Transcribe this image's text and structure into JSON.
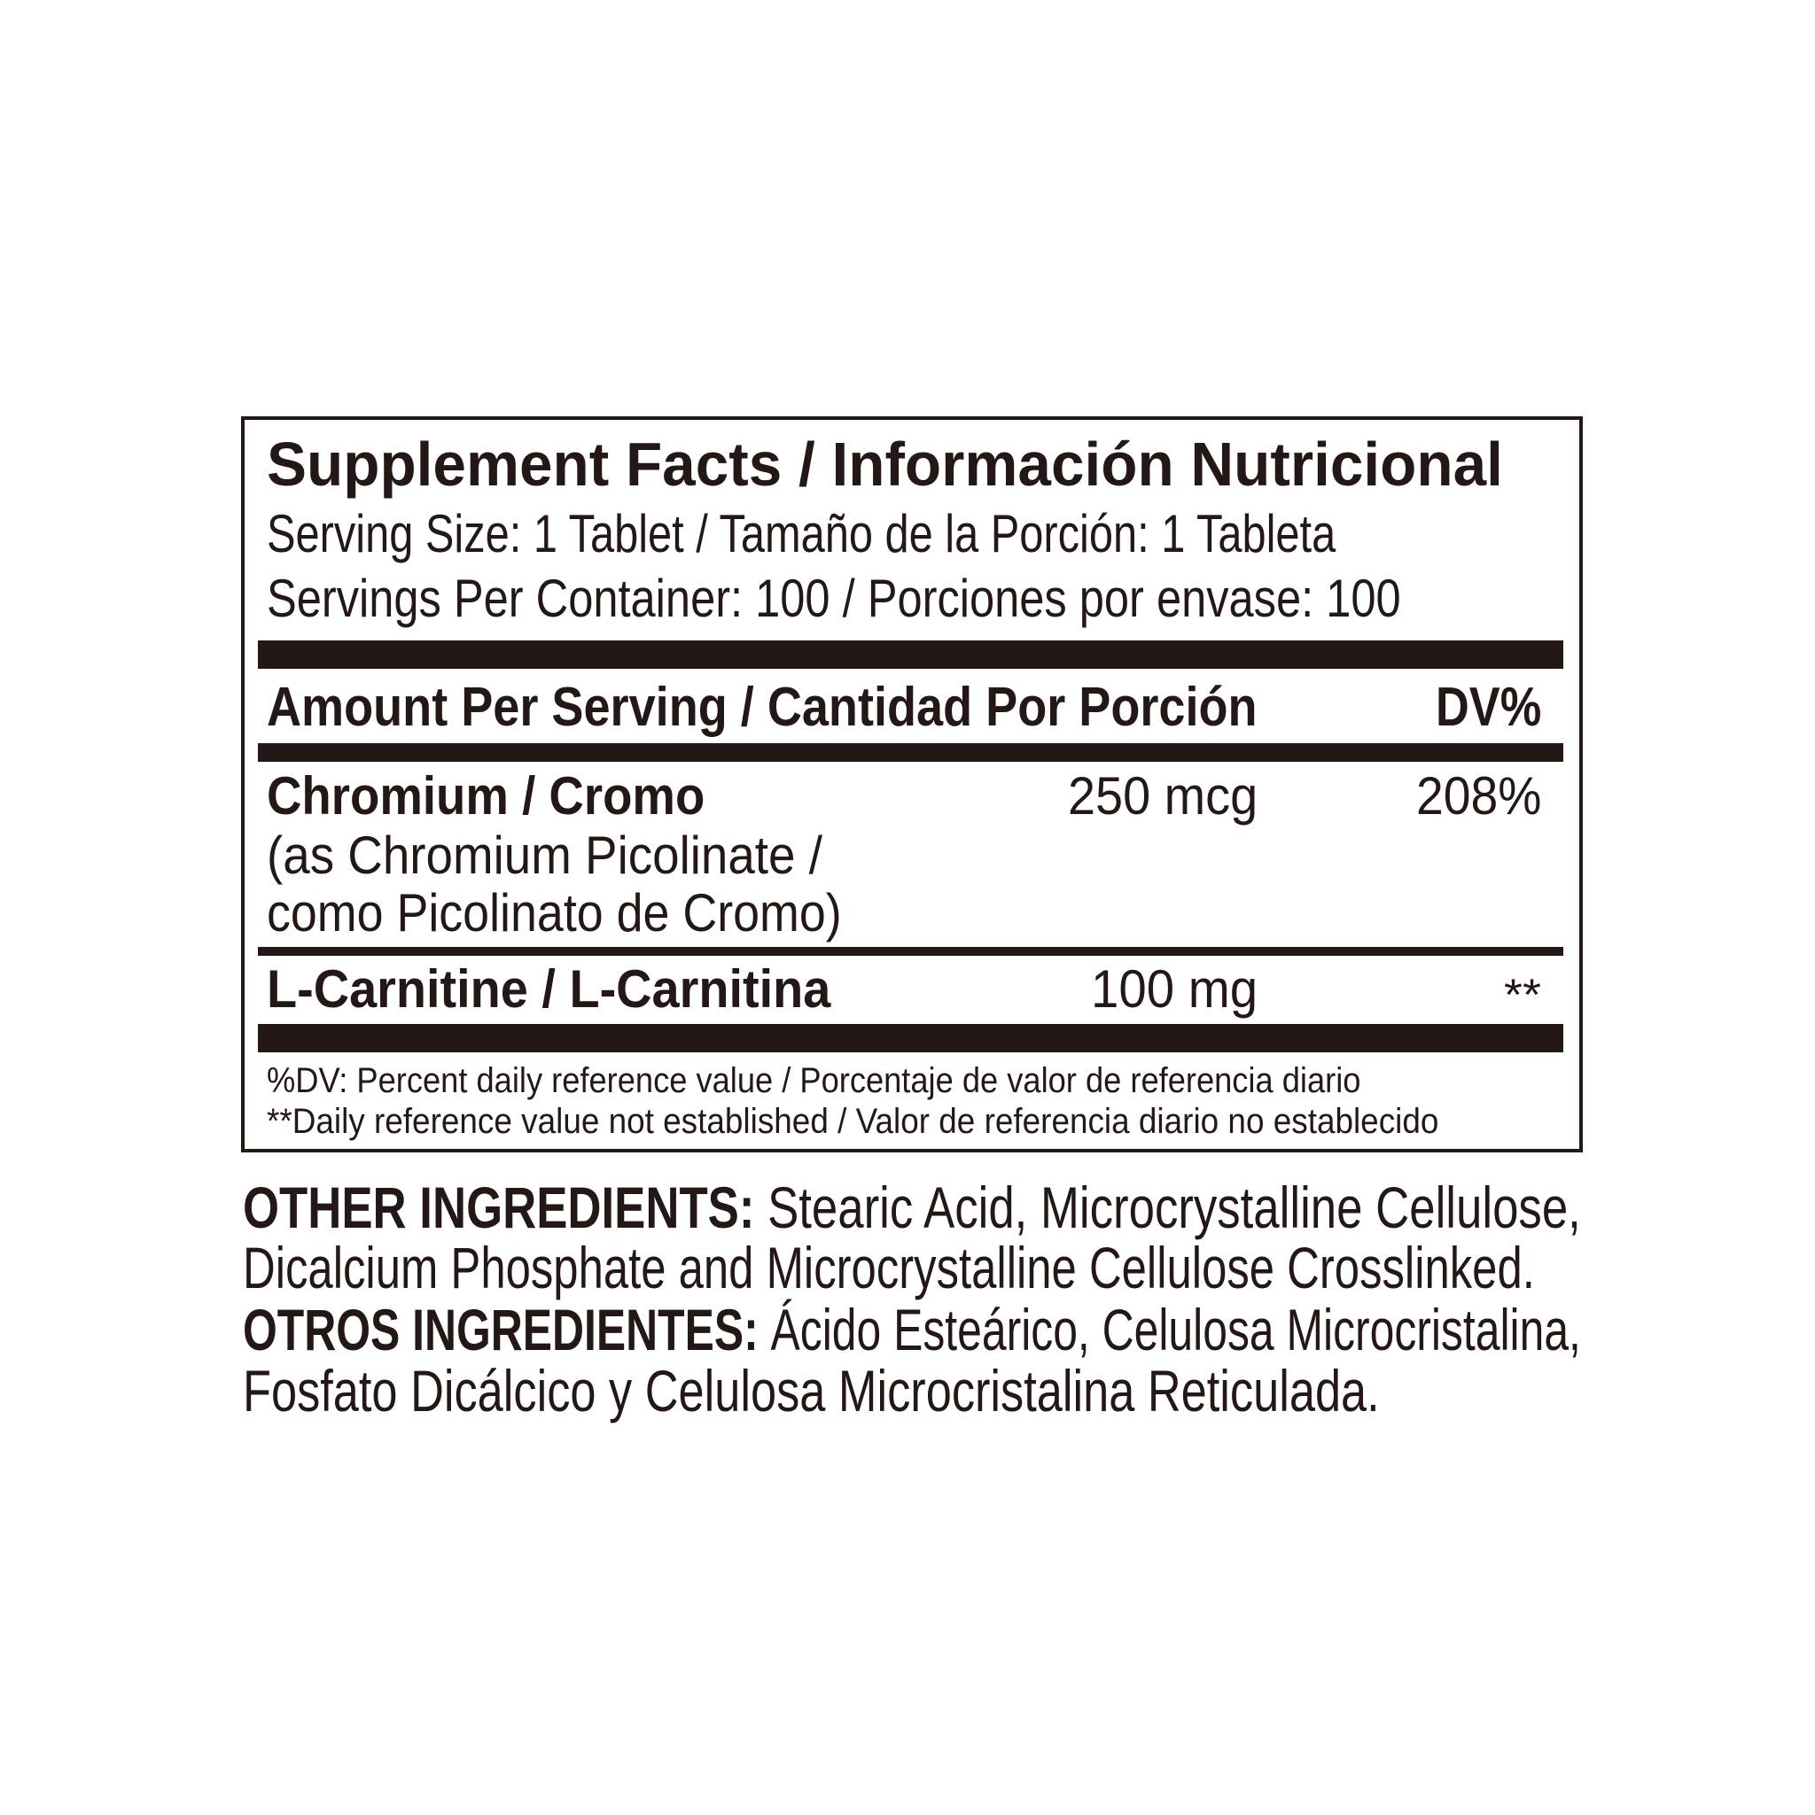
{
  "label": {
    "title": "Supplement Facts / Información Nutricional",
    "serving_size": "Serving Size: 1 Tablet / Tamaño de la Porción: 1 Tableta",
    "servings_per_container": "Servings Per Container: 100 / Porciones por envase: 100",
    "header": {
      "amount": "Amount Per Serving / Cantidad Por Porción",
      "dv": "DV%"
    },
    "rows": [
      {
        "name": "Chromium / Cromo",
        "detail_1": "(as Chromium Picolinate /",
        "detail_2": "como Picolinato de Cromo)",
        "amount": "250 mcg",
        "dv": "208%"
      },
      {
        "name": "L-Carnitine / L-Carnitina",
        "amount": "100 mg",
        "dv": "**"
      }
    ],
    "footnotes": [
      "%DV: Percent daily reference value / Porcentaje de valor de referencia diario",
      "**Daily reference value not established /  Valor de referencia diario no establecido"
    ]
  },
  "other_ingredients": {
    "en_label": "OTHER INGREDIENTS:",
    "en_line1": " Stearic Acid,   Microcrystalline Cellulose,",
    "en_line2": "Dicalcium Phosphate and Microcrystalline Cellulose Crosslinked.",
    "es_label": "OTROS INGREDIENTES:",
    "es_line1": " Ácido Esteárico, Celulosa Microcristalina,",
    "es_line2": "Fosfato Dicálcico y Celulosa Microcristalina Reticulada."
  },
  "colors": {
    "ink": "#231815",
    "background": "#ffffff"
  }
}
